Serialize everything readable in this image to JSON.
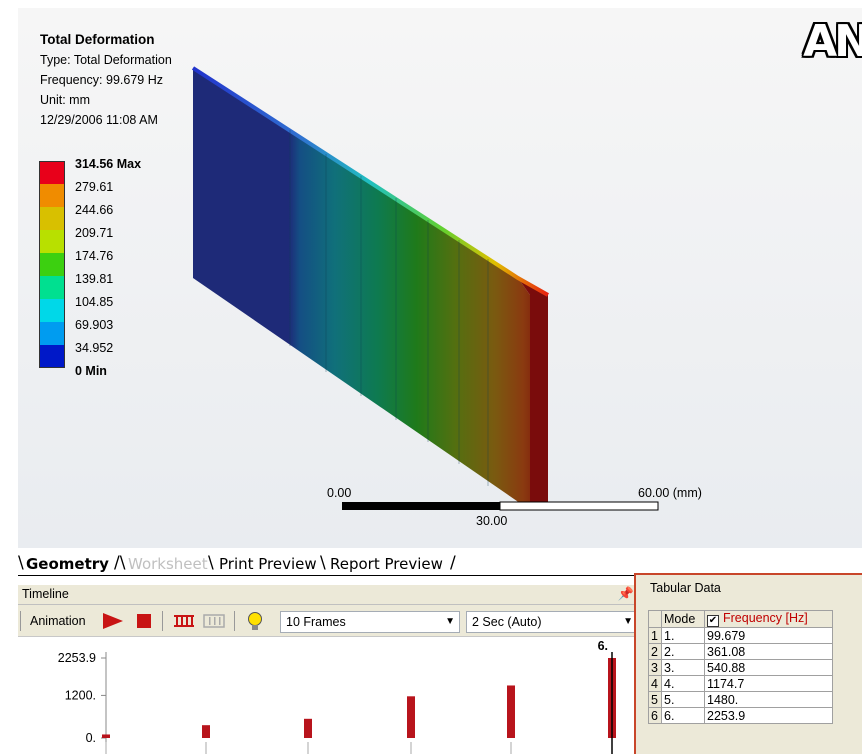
{
  "result": {
    "title": "Total Deformation",
    "type": "Type: Total Deformation",
    "frequency": "Frequency: 99.679 Hz",
    "unit": "Unit: mm",
    "timestamp": "12/29/2006 11:08 AM"
  },
  "brand": "AN",
  "legend": {
    "colors": [
      "#e8001a",
      "#f08c00",
      "#d8c000",
      "#b8e000",
      "#3cd010",
      "#00e090",
      "#00d8e8",
      "#009cf0",
      "#0018c8"
    ],
    "labels": [
      "314.56 Max",
      "279.61",
      "244.66",
      "209.71",
      "174.76",
      "139.81",
      "104.85",
      "69.903",
      "34.952",
      "0 Min"
    ]
  },
  "scale_bar": {
    "left_label": "0.00",
    "mid_label": "30.00",
    "right_label": "60.00 (mm)"
  },
  "tabs": {
    "geometry": "Geometry",
    "worksheet": "Worksheet",
    "print_preview": "Print Preview",
    "report_preview": "Report Preview"
  },
  "timeline": {
    "title": "Timeline",
    "pin_icon": "pushpin-icon",
    "animation_label": "Animation",
    "frames_value": "10 Frames",
    "duration_value": "2 Sec (Auto)",
    "chart": {
      "y_ticks": [
        "2253.9",
        "1200.",
        "0."
      ],
      "y_values": [
        2253.9,
        1200,
        0
      ],
      "ylim": [
        0,
        2253.9
      ],
      "bars": [
        99.679,
        361.08,
        540.88,
        1174.7,
        1480,
        2253.9
      ],
      "selected_label": "6."
    }
  },
  "tabular": {
    "title": "Tabular Data",
    "col_mode": "Mode",
    "col_freq": "Frequency [Hz]",
    "rows": [
      {
        "n": "1",
        "mode": "1.",
        "freq": "99.679"
      },
      {
        "n": "2",
        "mode": "2.",
        "freq": "361.08"
      },
      {
        "n": "3",
        "mode": "3.",
        "freq": "540.88"
      },
      {
        "n": "4",
        "mode": "4.",
        "freq": "1174.7"
      },
      {
        "n": "5",
        "mode": "5.",
        "freq": "1480."
      },
      {
        "n": "6",
        "mode": "6.",
        "freq": "2253.9"
      }
    ]
  }
}
